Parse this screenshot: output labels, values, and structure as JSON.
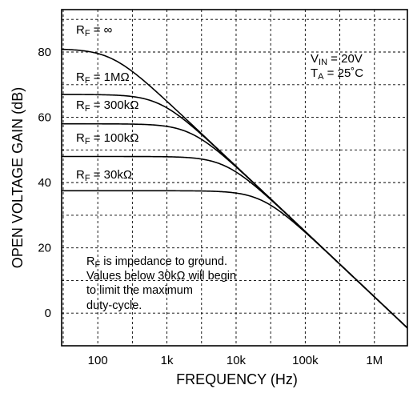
{
  "chart_data": {
    "type": "line",
    "title": "",
    "xlabel": "FREQUENCY (Hz)",
    "ylabel": "OPEN VOLTAGE GAIN (dB)",
    "xscale": "log",
    "xlim": [
      30,
      3000000
    ],
    "ylim": [
      -10,
      93
    ],
    "grid": true,
    "x_ticks": [
      {
        "value": 100,
        "label": "100"
      },
      {
        "value": 1000,
        "label": "1k"
      },
      {
        "value": 10000,
        "label": "10k"
      },
      {
        "value": 100000,
        "label": "100k"
      },
      {
        "value": 1000000,
        "label": "1M"
      }
    ],
    "y_ticks": [
      {
        "value": 0,
        "label": "0"
      },
      {
        "value": 20,
        "label": "20"
      },
      {
        "value": 40,
        "label": "40"
      },
      {
        "value": 60,
        "label": "60"
      },
      {
        "value": 80,
        "label": "80"
      }
    ],
    "asymptote": {
      "x": 100000,
      "y": 25,
      "slope_db_per_decade": -20
    },
    "series": [
      {
        "name_main": "R",
        "name_sub": "F",
        "name_rest": " = ∞",
        "dc_gain": 81
      },
      {
        "name_main": "R",
        "name_sub": "F",
        "name_rest": " = 1MΩ",
        "dc_gain": 67
      },
      {
        "name_main": "R",
        "name_sub": "F",
        "name_rest": " = 300kΩ",
        "dc_gain": 58
      },
      {
        "name_main": "R",
        "name_sub": "F",
        "name_rest": " = 100kΩ",
        "dc_gain": 48
      },
      {
        "name_main": "R",
        "name_sub": "F",
        "name_rest": " = 30kΩ",
        "dc_gain": 37.5
      }
    ],
    "conditions": [
      {
        "main": "V",
        "sub": "IN",
        "rest": " = 20V"
      },
      {
        "main": "T",
        "sub": "A",
        "rest": " = 25˚C"
      }
    ],
    "note": {
      "first_main": "R",
      "first_sub": "F",
      "first_rest": "  is impedance to ground.",
      "lines": [
        "Values below 30kΩ will begin",
        "to limit the maximum",
        "duty-cycle."
      ]
    }
  }
}
